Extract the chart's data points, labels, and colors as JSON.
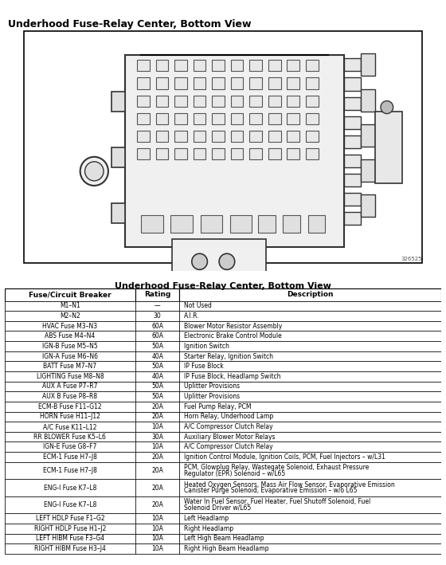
{
  "top_title": "Underhood Fuse-Relay Center, Bottom View",
  "table_title": "Underhood Fuse-Relay Center, Bottom View",
  "diagram_ref": "326525",
  "col_headers": [
    "Fuse/Circuit Breaker",
    "Rating",
    "Description"
  ],
  "rows": [
    [
      "M1–N1",
      "—",
      "Not Used"
    ],
    [
      "M2–N2",
      "30",
      "A.I.R."
    ],
    [
      "HVAC Fuse M3–N3",
      "60A",
      "Blower Motor Resistor Assembly"
    ],
    [
      "ABS Fuse M4–N4",
      "60A",
      "Electronic Brake Control Module"
    ],
    [
      "IGN-B Fuse M5–N5",
      "50A",
      "Ignition Switch"
    ],
    [
      "IGN-A Fuse M6–N6",
      "40A",
      "Starter Relay, Ignition Switch"
    ],
    [
      "BATT Fuse M7–N7",
      "50A",
      "IP Fuse Block"
    ],
    [
      "LIGHTING Fuse M8–N8",
      "40A",
      "IP Fuse Block, Headlamp Switch"
    ],
    [
      "AUX A Fuse P7–R7",
      "50A",
      "Uplitter Provisions"
    ],
    [
      "AUX B Fuse P8–R8",
      "50A",
      "Uplitter Provisions"
    ],
    [
      "ECM-B Fuse F11–G12",
      "20A",
      "Fuel Pump Relay, PCM"
    ],
    [
      "HORN Fuse H11–J12",
      "20A",
      "Horn Relay, Underhood Lamp"
    ],
    [
      "A/C Fuse K11–L12",
      "10A",
      "A/C Compressor Clutch Relay"
    ],
    [
      "RR BLOWER Fuse K5–L6",
      "30A",
      "Auxiliary Blower Motor Relays"
    ],
    [
      "IGN-E Fuse G8–F7",
      "10A",
      "A/C Compressor Clutch Relay"
    ],
    [
      "ECM-1 Fuse H7–J8",
      "20A",
      "Ignition Control Module, Ignition Coils, PCM, Fuel Injectors – w/L31"
    ],
    [
      "ECM-1 Fuse H7–J8",
      "20A",
      "PCM, Glowplug Relay, Wastegate Solenoid, Exhaust Pressure\nRegulator (EPR) Solenoid – w/L65"
    ],
    [
      "ENG-I Fuse K7–L8",
      "20A",
      "Heated Oxygen Sensors, Mass Air Flow Sensor, Evaporative Emission\nCanister Purge Solenoid, Evaporative Emission – w/o L65"
    ],
    [
      "ENG-I Fuse K7–L8",
      "20A",
      "Water In Fuel Sensor, Fuel Heater, Fuel Shutoff Solenoid, Fuel\nSolenoid Driver w/L65"
    ],
    [
      "LEFT HDLP Fuse F1–G2",
      "10A",
      "Left Headlamp"
    ],
    [
      "RIGHT HDLP Fuse H1–J2",
      "10A",
      "Right Headlamp"
    ],
    [
      "LEFT HIBM Fuse F3–G4",
      "10A",
      "Left High Beam Headlamp"
    ],
    [
      "RIGHT HIBM Fuse H3–J4",
      "10A",
      "Right High Beam Headlamp"
    ]
  ],
  "bg_color": "#ffffff",
  "border_color": "#000000",
  "header_bg": "#d3d3d3",
  "text_color": "#000000",
  "fig_width": 5.6,
  "fig_height": 7.09,
  "dpi": 100
}
